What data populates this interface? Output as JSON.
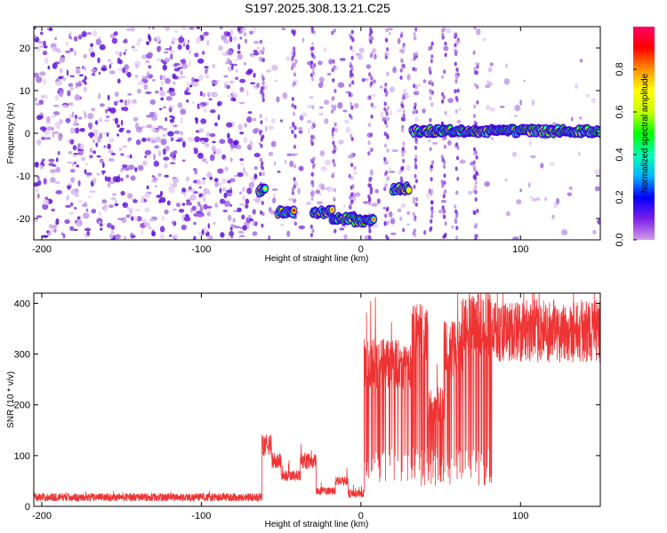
{
  "title": "S197.2025.308.13.21.C25",
  "chart_data": [
    {
      "type": "heatmap",
      "xlabel": "Height of straight line (km)",
      "ylabel": "Frequency (Hz)",
      "xlim": [
        -205,
        150
      ],
      "ylim": [
        -25,
        25
      ],
      "xticks": [
        -200,
        -100,
        0,
        100
      ],
      "yticks": [
        -20,
        -10,
        0,
        10,
        20
      ],
      "colorbar": {
        "label": "Normalized spectral amplitude",
        "range": [
          0,
          1
        ],
        "ticks": [
          0.0,
          0.2,
          0.4,
          0.6,
          0.8
        ],
        "stops": [
          "#d19ce8",
          "#7a1ee8",
          "#0000ff",
          "#00b8ff",
          "#00ffb0",
          "#00ff00",
          "#c8ff00",
          "#ffff00",
          "#ff9000",
          "#ff0000",
          "#ff0066"
        ]
      },
      "ridge": [
        {
          "x_range": [
            -64,
            -60
          ],
          "freq": -13.5
        },
        {
          "x_range": [
            -52,
            -42
          ],
          "freq": -18.5
        },
        {
          "x_range": [
            -30,
            -18
          ],
          "freq": -18.5
        },
        {
          "x_range": [
            -18,
            -4
          ],
          "freq": -20
        },
        {
          "x_range": [
            -4,
            8
          ],
          "freq": -20.5
        },
        {
          "x_range": [
            20,
            30
          ],
          "freq": -13
        },
        {
          "x_range": [
            32,
            150
          ],
          "freq": 0.5
        }
      ]
    },
    {
      "type": "line",
      "xlabel": "Height of straight line (km)",
      "ylabel": "SNR (10 * v/v)",
      "xlim": [
        -205,
        150
      ],
      "ylim": [
        0,
        420
      ],
      "xticks": [
        -200,
        -100,
        0,
        100
      ],
      "yticks": [
        0,
        100,
        200,
        300,
        400
      ],
      "color": "#ee3333",
      "segments": [
        {
          "x": [
            -205,
            -62
          ],
          "level": 18
        },
        {
          "x": [
            -62,
            -56
          ],
          "level": 120
        },
        {
          "x": [
            -56,
            -50
          ],
          "level": 90
        },
        {
          "x": [
            -50,
            -38
          ],
          "level": 60
        },
        {
          "x": [
            -38,
            -28
          ],
          "level": 90
        },
        {
          "x": [
            -28,
            -16
          ],
          "level": 30
        },
        {
          "x": [
            -16,
            -8
          ],
          "level": 50
        },
        {
          "x": [
            -8,
            2
          ],
          "level": 25
        },
        {
          "x": [
            2,
            32
          ],
          "level": 280
        },
        {
          "x": [
            32,
            42
          ],
          "level": 340
        },
        {
          "x": [
            42,
            52
          ],
          "level": 200
        },
        {
          "x": [
            52,
            64
          ],
          "level": 310
        },
        {
          "x": [
            64,
            82
          ],
          "level": 360
        },
        {
          "x": [
            82,
            150
          ],
          "level": 345
        }
      ]
    }
  ]
}
